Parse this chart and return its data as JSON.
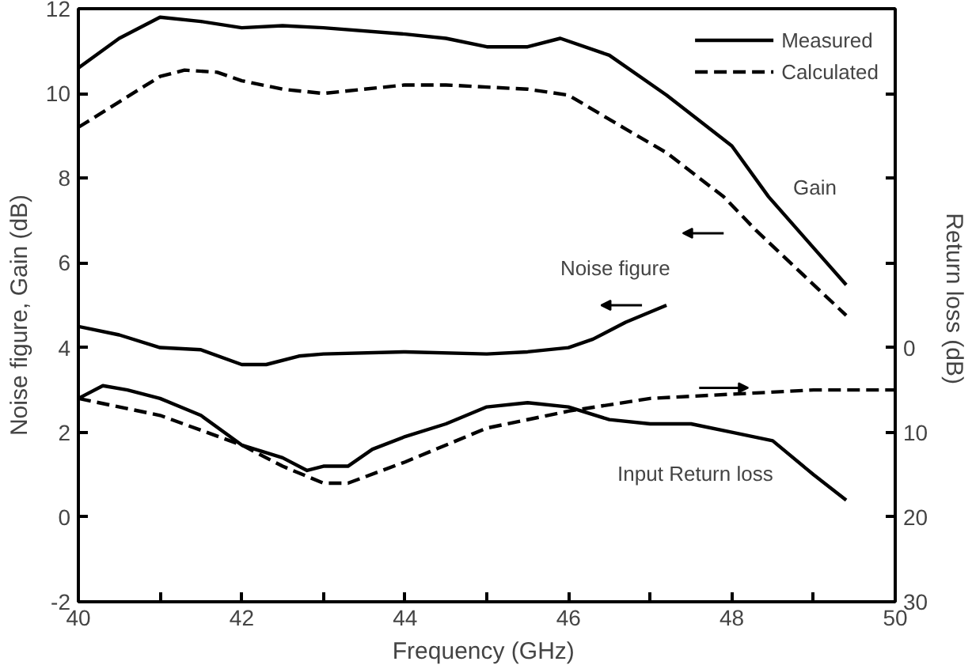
{
  "chart_data": {
    "type": "line",
    "xlabel": "Frequency  (GHz)",
    "ylabel": "Noise  figure,  Gain  (dB)",
    "y2label": "Return  loss  (dB)",
    "xlim": [
      40,
      50
    ],
    "xticks": [
      40,
      {
        "value": 41,
        "label": null
      },
      42,
      {
        "value": 43,
        "label": null
      },
      44,
      {
        "value": 45,
        "label": null
      },
      46,
      {
        "value": 47,
        "label": null
      },
      48,
      {
        "value": 49,
        "label": null
      },
      50
    ],
    "ylim": [
      -2,
      12
    ],
    "yticks": [
      -2,
      0,
      2,
      4,
      6,
      8,
      10,
      12
    ],
    "y2lim": [
      30,
      -40
    ],
    "y2ticks": [
      30,
      20,
      10,
      0,
      {
        "value": -10,
        "label": null
      },
      {
        "value": -20,
        "label": null
      },
      {
        "value": -30,
        "label": null
      }
    ],
    "grid": false,
    "legend": "top right",
    "series": [
      {
        "name": "Measured",
        "color": "#000000",
        "line_style": "solid",
        "x": [
          40,
          40.5,
          41,
          41.5,
          42,
          42.5,
          43,
          44,
          44.5,
          45,
          45.5,
          45.9,
          46.5,
          47.2,
          48,
          48.45,
          49.4
        ],
        "values": [
          10.6,
          11.3,
          11.8,
          11.7,
          11.55,
          11.6,
          11.55,
          11.4,
          11.3,
          11.1,
          11.1,
          11.3,
          10.9,
          9.96,
          8.76,
          7.56,
          5.48
        ]
      },
      {
        "name": "Calculated",
        "color": "#000000",
        "line_style": "dashed",
        "x": [
          40,
          40.5,
          41,
          41.3,
          41.7,
          42,
          42.5,
          43,
          43.5,
          44,
          44.5,
          45,
          45.5,
          46,
          46.7,
          47.2,
          47.9,
          48.3,
          49.4
        ],
        "values": [
          9.2,
          9.8,
          10.4,
          10.55,
          10.5,
          10.3,
          10.1,
          10.0,
          10.1,
          10.2,
          10.2,
          10.15,
          10.1,
          9.96,
          9.16,
          8.6,
          7.56,
          6.76,
          4.76
        ]
      },
      {
        "color": "#000000",
        "line_style": "solid",
        "x": [
          40,
          40.5,
          41,
          41.5,
          42,
          42.3,
          42.7,
          43,
          44,
          45,
          45.5,
          46,
          46.3,
          46.7,
          47.2
        ],
        "values": [
          4.5,
          4.3,
          4.0,
          3.95,
          3.6,
          3.6,
          3.8,
          3.85,
          3.9,
          3.85,
          3.9,
          4.0,
          4.2,
          4.6,
          5.0
        ]
      },
      {
        "color": "#000000",
        "line_style": "solid",
        "axis": "y2",
        "x": [
          40,
          40.3,
          40.6,
          41,
          41.5,
          42,
          42.5,
          42.8,
          43,
          43.3,
          43.6,
          44,
          44.5,
          45,
          45.5,
          46,
          46.5,
          47,
          47.5,
          48,
          48.5,
          49,
          49.4
        ],
        "values": [
          6,
          4.5,
          5,
          6,
          8,
          11.5,
          13,
          14.5,
          14,
          14,
          12,
          10.5,
          9,
          7,
          6.5,
          7,
          8.5,
          9,
          9,
          10,
          11,
          15,
          18
        ]
      },
      {
        "color": "#000000",
        "line_style": "dashed",
        "axis": "y2",
        "x": [
          40,
          41,
          42,
          42.5,
          43,
          43.3,
          44,
          45,
          46,
          47,
          48,
          49,
          50
        ],
        "values": [
          6,
          8,
          11.5,
          14,
          16,
          16,
          13.5,
          9.5,
          7.5,
          6,
          5.5,
          5,
          5
        ]
      }
    ],
    "annotations": [
      "Gain",
      "Noise figure",
      "Input Return loss"
    ]
  }
}
